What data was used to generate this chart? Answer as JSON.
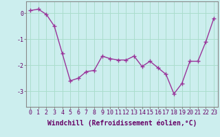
{
  "x": [
    0,
    1,
    2,
    3,
    4,
    5,
    6,
    7,
    8,
    9,
    10,
    11,
    12,
    13,
    14,
    15,
    16,
    17,
    18,
    19,
    20,
    21,
    22,
    23
  ],
  "y": [
    0.1,
    0.15,
    -0.05,
    -0.5,
    -1.55,
    -2.6,
    -2.5,
    -2.25,
    -2.2,
    -1.65,
    -1.75,
    -1.8,
    -1.8,
    -1.65,
    -2.05,
    -1.85,
    -2.1,
    -2.35,
    -3.1,
    -2.7,
    -1.85,
    -1.85,
    -1.1,
    -0.2
  ],
  "line_color": "#993399",
  "marker": "+",
  "marker_size": 4,
  "bg_color": "#cceeee",
  "grid_color": "#aaddcc",
  "xlabel": "Windchill (Refroidissement éolien,°C)",
  "xlabel_fontsize": 7,
  "ylabel_ticks": [
    0,
    -1,
    -2,
    -3
  ],
  "xlim": [
    -0.5,
    23.5
  ],
  "ylim": [
    -3.6,
    0.45
  ],
  "xtick_labels": [
    "0",
    "1",
    "2",
    "3",
    "4",
    "5",
    "6",
    "7",
    "8",
    "9",
    "10",
    "11",
    "12",
    "13",
    "14",
    "15",
    "16",
    "17",
    "18",
    "19",
    "20",
    "21",
    "22",
    "23"
  ],
  "tick_fontsize": 6,
  "line_width": 1.0
}
